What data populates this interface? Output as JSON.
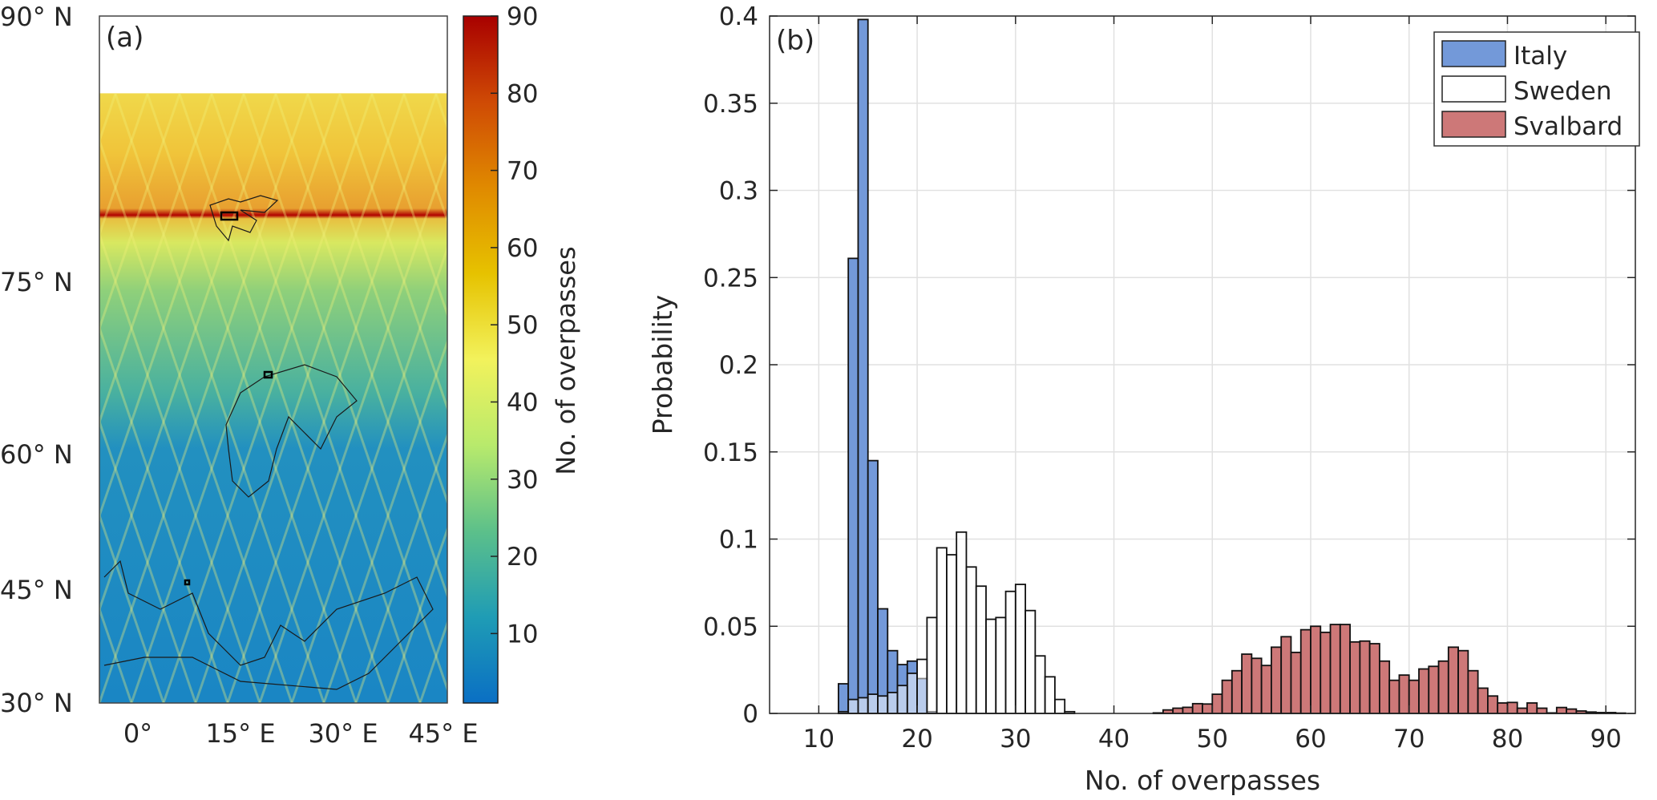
{
  "panel_a": {
    "label": "(a)",
    "lat_ticks": [
      "90° N",
      "75° N",
      "60° N",
      "45° N",
      "30° N"
    ],
    "lon_ticks": [
      "0°",
      "15° E",
      "30° E",
      "45° E"
    ],
    "colorbar": {
      "label": "No. of overpasses",
      "ticks": [
        "10",
        "20",
        "30",
        "40",
        "50",
        "60",
        "70",
        "80",
        "90"
      ],
      "range": [
        1,
        90
      ],
      "colors": [
        "#0a6fc4",
        "#1f9cb5",
        "#5cc08a",
        "#b8ea6c",
        "#f2f25c",
        "#e6c200",
        "#e08a00",
        "#cf4a05",
        "#a80000"
      ]
    }
  },
  "chart_data": {
    "type": "bar",
    "panel_label": "(b)",
    "xlabel": "No. of overpasses",
    "ylabel": "Probability",
    "xlim": [
      5,
      93
    ],
    "ylim": [
      0,
      0.4
    ],
    "xticks": [
      10,
      20,
      30,
      40,
      50,
      60,
      70,
      80,
      90
    ],
    "yticks": [
      0,
      0.05,
      0.1,
      0.15,
      0.2,
      0.25,
      0.3,
      0.35,
      0.4
    ],
    "ytick_labels": [
      "0",
      "0.05",
      "0.1",
      "0.15",
      "0.2",
      "0.25",
      "0.3",
      "0.35",
      "0.4"
    ],
    "grid": true,
    "bin_width": 1,
    "legend_position": "top-right",
    "series": [
      {
        "name": "Italy",
        "color": "#7399d9",
        "bin_start": 12,
        "values": [
          0.017,
          0.261,
          0.398,
          0.145,
          0.06,
          0.036,
          0.028,
          0.03,
          0.02,
          0.001
        ]
      },
      {
        "name": "Sweden",
        "color": "#ffffff",
        "bin_start": 12,
        "values": [
          0.001,
          0.008,
          0.009,
          0.011,
          0.01,
          0.012,
          0.016,
          0.023,
          0.031,
          0.055,
          0.095,
          0.091,
          0.104,
          0.084,
          0.073,
          0.054,
          0.055,
          0.07,
          0.074,
          0.059,
          0.033,
          0.021,
          0.008,
          0.001
        ]
      },
      {
        "name": "Svalbard",
        "color": "#cd7878",
        "bin_start": 44,
        "values": [
          0.0003,
          0.002,
          0.003,
          0.0035,
          0.0056,
          0.0054,
          0.011,
          0.019,
          0.0245,
          0.034,
          0.0316,
          0.0275,
          0.038,
          0.044,
          0.035,
          0.048,
          0.05,
          0.0465,
          0.051,
          0.051,
          0.041,
          0.0415,
          0.04,
          0.03,
          0.019,
          0.022,
          0.019,
          0.0255,
          0.027,
          0.03,
          0.038,
          0.036,
          0.0245,
          0.0145,
          0.01,
          0.006,
          0.0063,
          0.003,
          0.006,
          0.003,
          0.0003,
          0.0034,
          0.0025,
          0.0014,
          0.0008,
          0.0005,
          0.0005,
          0.0002
        ]
      }
    ]
  }
}
